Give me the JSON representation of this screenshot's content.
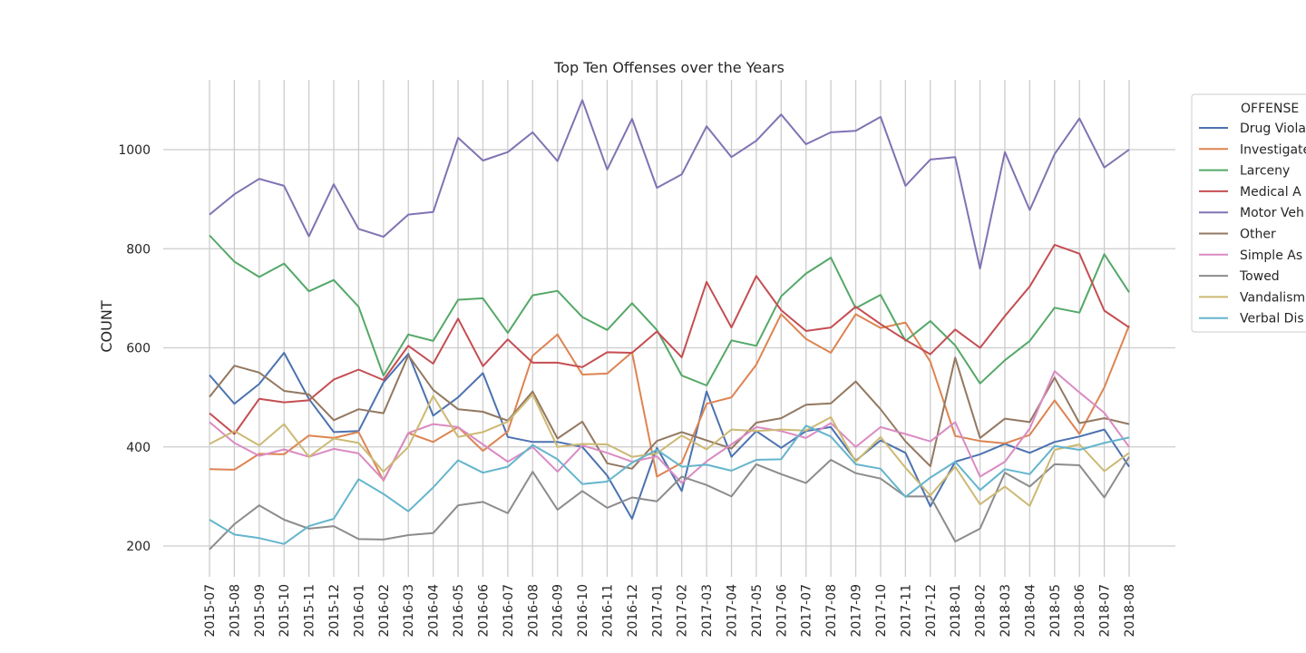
{
  "chart_data": {
    "type": "line",
    "title": "Top Ten Offenses over the Years",
    "xlabel": "",
    "ylabel": "COUNT",
    "ylim": [
      150,
      1140
    ],
    "yticks": [
      200,
      400,
      600,
      800,
      1000
    ],
    "grid": true,
    "legend": {
      "title": "OFFENSE",
      "placement": "right"
    },
    "x": [
      "2015-07",
      "2015-08",
      "2015-09",
      "2015-10",
      "2015-11",
      "2015-12",
      "2016-01",
      "2016-02",
      "2016-03",
      "2016-04",
      "2016-05",
      "2016-06",
      "2016-07",
      "2016-08",
      "2016-09",
      "2016-10",
      "2016-11",
      "2016-12",
      "2017-01",
      "2017-02",
      "2017-03",
      "2017-04",
      "2017-05",
      "2017-06",
      "2017-07",
      "2017-08",
      "2017-09",
      "2017-10",
      "2017-11",
      "2017-12",
      "2018-01",
      "2018-02",
      "2018-03",
      "2018-04",
      "2018-05",
      "2018-06",
      "2018-07",
      "2018-08"
    ],
    "series": [
      {
        "name": "Drug Violations",
        "legend_label": "Drug Viola",
        "color": "#4c72b0",
        "values": [
          545,
          487,
          527,
          590,
          497,
          430,
          432,
          530,
          588,
          463,
          500,
          549,
          420,
          410,
          410,
          400,
          342,
          255,
          398,
          311,
          512,
          380,
          432,
          398,
          432,
          440,
          372,
          413,
          388,
          280,
          370,
          385,
          406,
          388,
          410,
          421,
          435,
          360
        ]
      },
      {
        "name": "Investigate",
        "legend_label": "Investigate",
        "color": "#dd8452",
        "values": [
          355,
          354,
          386,
          385,
          423,
          418,
          430,
          332,
          428,
          410,
          440,
          392,
          431,
          584,
          627,
          546,
          548,
          591,
          340,
          368,
          487,
          500,
          566,
          668,
          618,
          590,
          668,
          640,
          651,
          572,
          422,
          412,
          407,
          424,
          494,
          426,
          520,
          645
        ]
      },
      {
        "name": "Larceny",
        "legend_label": "Larceny",
        "color": "#55a868",
        "values": [
          827,
          774,
          743,
          770,
          714,
          737,
          683,
          544,
          627,
          614,
          697,
          700,
          630,
          706,
          715,
          662,
          636,
          690,
          636,
          544,
          524,
          615,
          604,
          704,
          750,
          782,
          680,
          707,
          614,
          654,
          605,
          528,
          575,
          614,
          681,
          671,
          789,
          712
        ]
      },
      {
        "name": "Medical Assist",
        "legend_label": "Medical A",
        "color": "#c44e52",
        "values": [
          468,
          426,
          497,
          490,
          494,
          536,
          556,
          535,
          604,
          568,
          659,
          563,
          617,
          570,
          570,
          561,
          591,
          590,
          633,
          581,
          733,
          641,
          745,
          676,
          634,
          641,
          683,
          648,
          616,
          587,
          637,
          600,
          664,
          724,
          808,
          790,
          675,
          641
        ]
      },
      {
        "name": "Motor Vehicle",
        "legend_label": "Motor Veh",
        "color": "#8172b3",
        "values": [
          869,
          910,
          941,
          927,
          825,
          930,
          840,
          824,
          869,
          874,
          1024,
          978,
          995,
          1035,
          977,
          1100,
          960,
          1062,
          923,
          950,
          1047,
          985,
          1018,
          1071,
          1011,
          1035,
          1038,
          1066,
          927,
          980,
          985,
          760,
          995,
          878,
          991,
          1063,
          964,
          1000
        ]
      },
      {
        "name": "Other",
        "legend_label": "Other",
        "color": "#937860",
        "values": [
          501,
          564,
          550,
          513,
          506,
          454,
          476,
          468,
          585,
          515,
          476,
          471,
          453,
          512,
          417,
          451,
          367,
          356,
          412,
          430,
          413,
          397,
          449,
          458,
          485,
          488,
          532,
          476,
          411,
          361,
          580,
          418,
          457,
          450,
          540,
          448,
          458,
          446
        ]
      },
      {
        "name": "Simple Assault",
        "legend_label": "Simple As",
        "color": "#da8bc3",
        "values": [
          450,
          408,
          382,
          395,
          380,
          396,
          387,
          333,
          428,
          446,
          440,
          405,
          370,
          400,
          350,
          403,
          388,
          370,
          381,
          327,
          371,
          405,
          440,
          432,
          418,
          448,
          400,
          440,
          426,
          411,
          450,
          340,
          370,
          437,
          553,
          510,
          469,
          400
        ]
      },
      {
        "name": "Towed",
        "legend_label": "Towed",
        "color": "#8c8c8c",
        "values": [
          193,
          244,
          282,
          253,
          235,
          240,
          214,
          213,
          222,
          226,
          282,
          289,
          266,
          350,
          273,
          311,
          277,
          298,
          290,
          340,
          323,
          300,
          365,
          345,
          327,
          374,
          347,
          336,
          300,
          300,
          209,
          235,
          348,
          320,
          365,
          363,
          298,
          380
        ]
      },
      {
        "name": "Vandalism",
        "legend_label": "Vandalism",
        "color": "#ccb974",
        "values": [
          406,
          432,
          403,
          446,
          380,
          417,
          408,
          350,
          400,
          503,
          420,
          430,
          451,
          506,
          400,
          406,
          405,
          380,
          387,
          423,
          395,
          435,
          432,
          435,
          433,
          460,
          370,
          420,
          358,
          302,
          360,
          284,
          320,
          281,
          394,
          405,
          351,
          388
        ]
      },
      {
        "name": "Verbal Disputes",
        "legend_label": "Verbal Dis",
        "color": "#64b5cd",
        "values": [
          253,
          223,
          216,
          204,
          240,
          255,
          335,
          305,
          270,
          318,
          373,
          348,
          360,
          404,
          375,
          325,
          330,
          368,
          394,
          360,
          364,
          352,
          374,
          375,
          443,
          421,
          365,
          356,
          299,
          338,
          370,
          313,
          355,
          345,
          402,
          394,
          408,
          419
        ]
      }
    ]
  }
}
